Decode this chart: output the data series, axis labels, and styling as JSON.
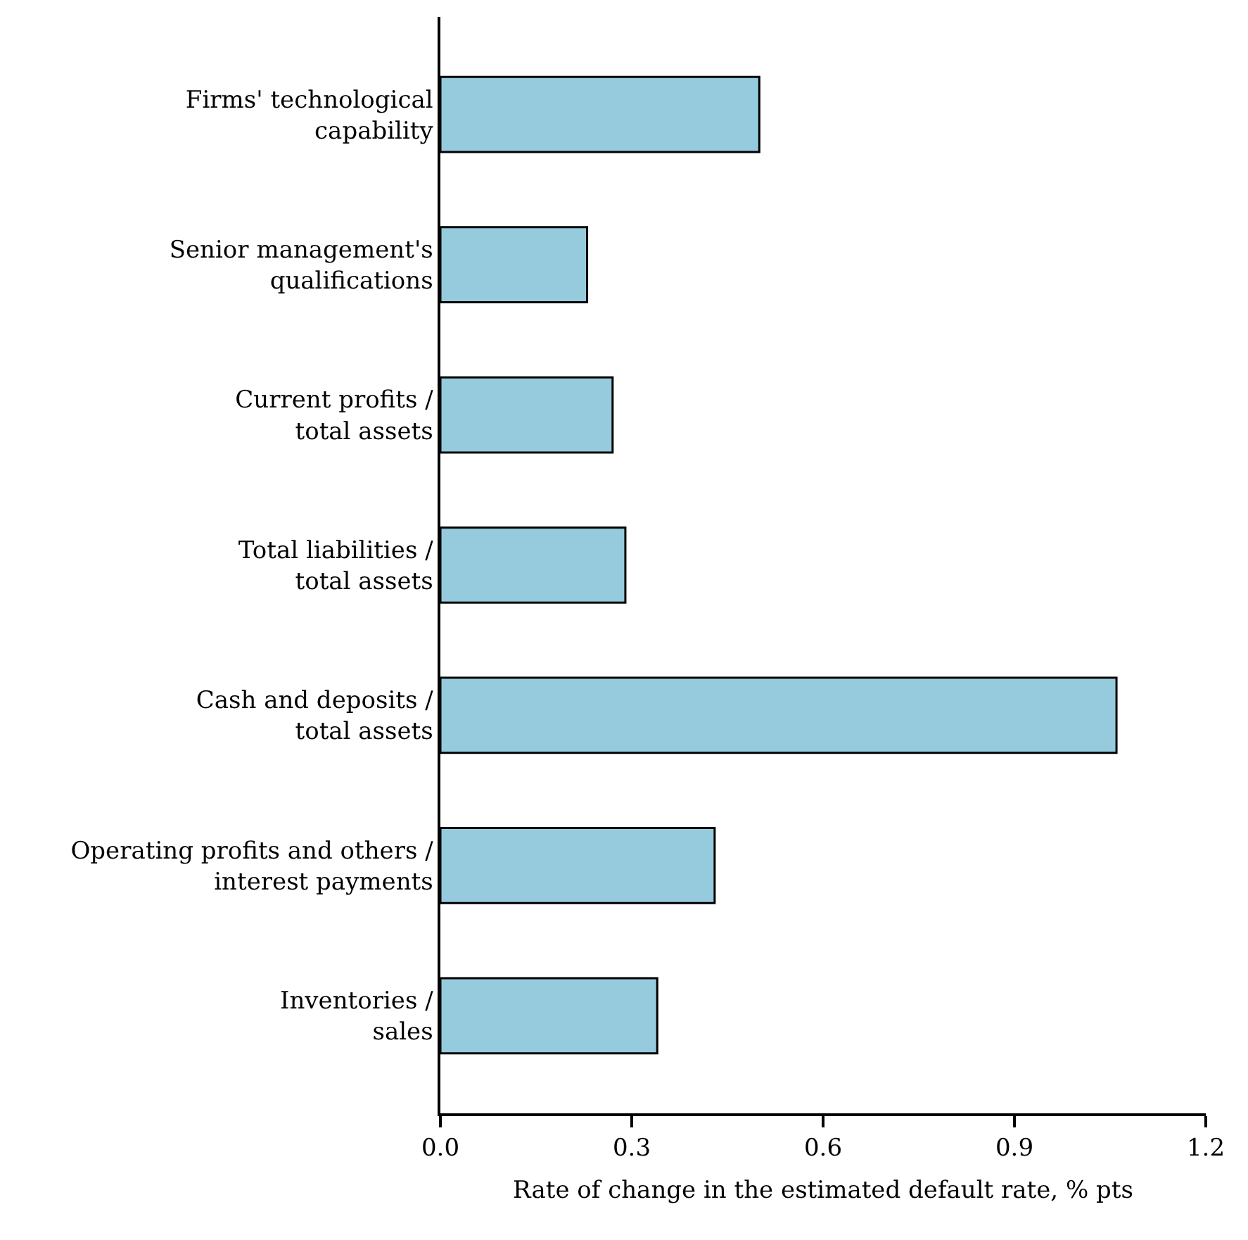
{
  "chart_data": {
    "type": "bar",
    "orientation": "horizontal",
    "xlabel": "Rate of change in the estimated default rate, % pts",
    "categories": [
      "Firms' technological capability",
      "Senior management's qualifications",
      "Current profits / total assets",
      "Total liabilities / total assets",
      "Cash and deposits / total assets",
      "Operating profits and others / interest payments",
      "Inventories / sales"
    ],
    "values": [
      0.5,
      0.23,
      0.27,
      0.29,
      1.06,
      0.43,
      0.34
    ],
    "color": "#95cbdc",
    "xlim": [
      0,
      1.2
    ],
    "xticks": [
      {
        "value": 0,
        "label": "0.0"
      },
      0.3,
      0.6,
      0.9,
      {
        "value": 1.2,
        "label": "1.2"
      }
    ],
    "grid": false
  }
}
